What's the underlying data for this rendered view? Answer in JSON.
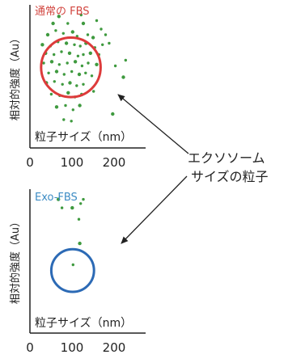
{
  "callout": {
    "line1": "エクソソーム",
    "line2": "サイズの粒子"
  },
  "colors": {
    "dot": "#3f9a3f",
    "axis": "#222222",
    "text": "#222222"
  },
  "chart_data": [
    {
      "type": "scatter",
      "title": "通常の FBS",
      "title_color": "#d2453f",
      "ylabel": "相対的強度（Au）",
      "xlabel": "粒子サイズ（nm）",
      "xticks": [
        "0",
        "100",
        "200"
      ],
      "xlim": [
        0,
        260
      ],
      "ylim": [
        0,
        100
      ],
      "circle_color": "#dd3b3b",
      "circle": {
        "cx": 92,
        "cy": 57,
        "r": 67
      },
      "points": [
        {
          "x": 65,
          "y": 93
        },
        {
          "x": 115,
          "y": 94
        },
        {
          "x": 85,
          "y": 88
        },
        {
          "x": 120,
          "y": 88
        },
        {
          "x": 150,
          "y": 90
        },
        {
          "x": 160,
          "y": 84
        },
        {
          "x": 40,
          "y": 80
        },
        {
          "x": 58,
          "y": 83
        },
        {
          "x": 75,
          "y": 81
        },
        {
          "x": 96,
          "y": 82
        },
        {
          "x": 106,
          "y": 79
        },
        {
          "x": 130,
          "y": 80
        },
        {
          "x": 142,
          "y": 78
        },
        {
          "x": 170,
          "y": 80
        },
        {
          "x": 178,
          "y": 74
        },
        {
          "x": 28,
          "y": 73
        },
        {
          "x": 46,
          "y": 72
        },
        {
          "x": 63,
          "y": 75
        },
        {
          "x": 82,
          "y": 74
        },
        {
          "x": 100,
          "y": 73
        },
        {
          "x": 113,
          "y": 72
        },
        {
          "x": 126,
          "y": 74
        },
        {
          "x": 146,
          "y": 71
        },
        {
          "x": 163,
          "y": 73
        },
        {
          "x": 35,
          "y": 67
        },
        {
          "x": 54,
          "y": 66
        },
        {
          "x": 71,
          "y": 68
        },
        {
          "x": 89,
          "y": 67
        },
        {
          "x": 108,
          "y": 65
        },
        {
          "x": 120,
          "y": 66
        },
        {
          "x": 136,
          "y": 67
        },
        {
          "x": 155,
          "y": 66
        },
        {
          "x": 31,
          "y": 60
        },
        {
          "x": 49,
          "y": 61
        },
        {
          "x": 66,
          "y": 59
        },
        {
          "x": 84,
          "y": 60
        },
        {
          "x": 102,
          "y": 61
        },
        {
          "x": 117,
          "y": 58
        },
        {
          "x": 131,
          "y": 60
        },
        {
          "x": 150,
          "y": 59
        },
        {
          "x": 192,
          "y": 58
        },
        {
          "x": 42,
          "y": 53
        },
        {
          "x": 60,
          "y": 54
        },
        {
          "x": 77,
          "y": 52
        },
        {
          "x": 94,
          "y": 54
        },
        {
          "x": 111,
          "y": 52
        },
        {
          "x": 125,
          "y": 53
        },
        {
          "x": 139,
          "y": 51
        },
        {
          "x": 37,
          "y": 46
        },
        {
          "x": 55,
          "y": 47
        },
        {
          "x": 73,
          "y": 45
        },
        {
          "x": 90,
          "y": 46
        },
        {
          "x": 105,
          "y": 44
        },
        {
          "x": 120,
          "y": 45
        },
        {
          "x": 210,
          "y": 50
        },
        {
          "x": 48,
          "y": 38
        },
        {
          "x": 67,
          "y": 37
        },
        {
          "x": 86,
          "y": 39
        },
        {
          "x": 101,
          "y": 36
        },
        {
          "x": 116,
          "y": 38
        },
        {
          "x": 60,
          "y": 29
        },
        {
          "x": 80,
          "y": 30
        },
        {
          "x": 97,
          "y": 27
        },
        {
          "x": 112,
          "y": 30
        },
        {
          "x": 76,
          "y": 20
        },
        {
          "x": 93,
          "y": 19
        },
        {
          "x": 186,
          "y": 24
        },
        {
          "x": 215,
          "y": 62
        },
        {
          "x": 143,
          "y": 40
        },
        {
          "x": 52,
          "y": 88
        }
      ]
    },
    {
      "type": "scatter",
      "title": "Exo-FBS",
      "title_color": "#3d8cc4",
      "ylabel": "相対的強度（Au）",
      "xlabel": "粒子サイズ（nm）",
      "xticks": [
        "0",
        "100",
        "200"
      ],
      "xlim": [
        0,
        260
      ],
      "ylim": [
        0,
        100
      ],
      "circle_color": "#2c6ab5",
      "circle": {
        "cx": 96,
        "cy": 44,
        "r": 48
      },
      "points": [
        {
          "x": 64,
          "y": 94
        },
        {
          "x": 120,
          "y": 94
        },
        {
          "x": 72,
          "y": 88
        },
        {
          "x": 95,
          "y": 88
        },
        {
          "x": 110,
          "y": 80
        },
        {
          "x": 97,
          "y": 48
        },
        {
          "x": 112,
          "y": 63
        },
        {
          "x": 114,
          "y": 91
        }
      ]
    }
  ]
}
